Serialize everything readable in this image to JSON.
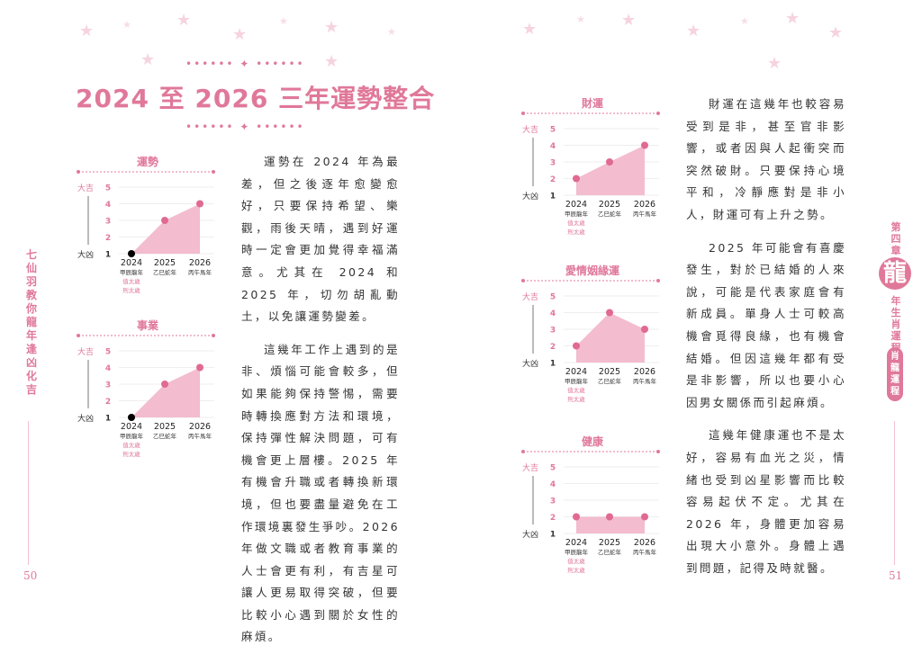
{
  "title": "2024 至 2026 三年運勢整合",
  "colors": {
    "accent": "#e0789a",
    "fill": "#f3bccf",
    "point": "#e06a92",
    "worst_point": "#000000"
  },
  "left_page": {
    "page_number": "50",
    "side_title": "七仙羽教你龍年逢凶化吉",
    "paragraphs": [
      "運勢在 2024 年為最差，但之後逐年愈變愈好，只要保持希望、樂觀，雨後天晴，遇到好運時一定會更加覺得幸福滿意。尤其在 2024 和 2025 年，切勿胡亂動土，以免讓運勢變差。",
      "這幾年工作上遇到的是非、煩惱可能會較多，但如果能夠保持警惕，需要時轉換應對方法和環境，保持彈性解決問題，可有機會更上層樓。2025 年有機會升職或者轉換新環境，但也要盡量避免在工作環境裏發生爭吵。2026 年做文職或者教育事業的人士會更有利，有吉星可讓人更易取得突破，但要比較小心遇到關於女性的麻煩。"
    ]
  },
  "right_page": {
    "page_number": "51",
    "chapter": "第四章",
    "zodiac_char": "龍",
    "section": "年生肖運程",
    "tag": "肖龍運程",
    "paragraphs": [
      "財運在這幾年也較容易受到是非，甚至官非影響，或者因與人起衝突而突然破財。只要保持心境平和，冷靜應對是非小人，財運可有上升之勢。",
      "2025 年可能會有喜慶發生，對於已結婚的人來說，可能是代表家庭會有新成員。單身人士可較高機會覓得良緣，也有機會結婚。但因這幾年都有受是非影響，所以也要小心因男女關係而引起麻煩。",
      "這幾年健康運也不是太好，容易有血光之災，情緒也受到凶星影響而比較容易起伏不定。尤其在 2026 年，身體更加容易出現大小意外。身體上遇到問題，記得及時就醫。"
    ]
  },
  "chart_data": [
    {
      "type": "area",
      "title": "運勢",
      "categories": [
        "2024",
        "2025",
        "2026"
      ],
      "category_sublabels": [
        "甲辰龍年",
        "乙巳蛇年",
        "丙午馬年"
      ],
      "notes_2024": [
        "值太歲",
        "刑太歲"
      ],
      "values": [
        1,
        3,
        4
      ],
      "ylim": [
        1,
        5
      ],
      "yticks": [
        1,
        2,
        3,
        4,
        5
      ],
      "y_top_label": "大吉",
      "y_bottom_label": "大凶",
      "grid": true
    },
    {
      "type": "area",
      "title": "事業",
      "categories": [
        "2024",
        "2025",
        "2026"
      ],
      "category_sublabels": [
        "甲辰龍年",
        "乙巳蛇年",
        "丙午馬年"
      ],
      "notes_2024": [
        "值太歲",
        "刑太歲"
      ],
      "values": [
        1,
        3,
        4
      ],
      "ylim": [
        1,
        5
      ],
      "yticks": [
        1,
        2,
        3,
        4,
        5
      ],
      "y_top_label": "大吉",
      "y_bottom_label": "大凶",
      "grid": true
    },
    {
      "type": "area",
      "title": "財運",
      "categories": [
        "2024",
        "2025",
        "2026"
      ],
      "category_sublabels": [
        "甲辰龍年",
        "乙巳蛇年",
        "丙午馬年"
      ],
      "notes_2024": [
        "值太歲",
        "刑太歲"
      ],
      "values": [
        2,
        3,
        4
      ],
      "ylim": [
        1,
        5
      ],
      "yticks": [
        1,
        2,
        3,
        4,
        5
      ],
      "y_top_label": "大吉",
      "y_bottom_label": "大凶",
      "grid": true
    },
    {
      "type": "area",
      "title": "愛情姻緣運",
      "categories": [
        "2024",
        "2025",
        "2026"
      ],
      "category_sublabels": [
        "甲辰龍年",
        "乙巳蛇年",
        "丙午馬年"
      ],
      "notes_2024": [
        "值太歲",
        "刑太歲"
      ],
      "values": [
        2,
        4,
        3
      ],
      "ylim": [
        1,
        5
      ],
      "yticks": [
        1,
        2,
        3,
        4,
        5
      ],
      "y_top_label": "大吉",
      "y_bottom_label": "大凶",
      "grid": true
    },
    {
      "type": "area",
      "title": "健康",
      "categories": [
        "2024",
        "2025",
        "2026"
      ],
      "category_sublabels": [
        "甲辰龍年",
        "乙巳蛇年",
        "丙午馬年"
      ],
      "notes_2024": [
        "值太歲",
        "刑太歲"
      ],
      "values": [
        2,
        2,
        2
      ],
      "ylim": [
        1,
        5
      ],
      "yticks": [
        1,
        2,
        3,
        4,
        5
      ],
      "y_top_label": "大吉",
      "y_bottom_label": "大凶",
      "grid": true
    }
  ]
}
